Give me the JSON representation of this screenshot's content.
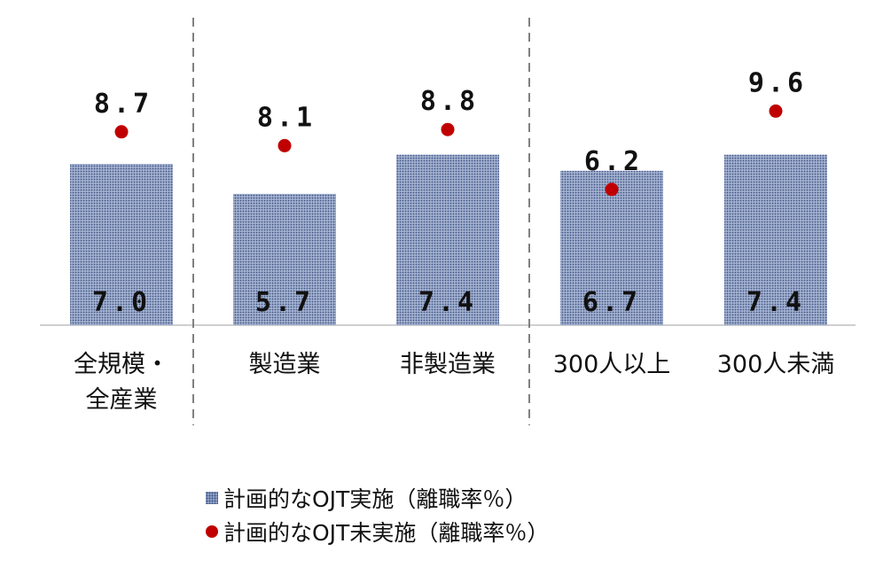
{
  "chart_data": {
    "type": "bar",
    "categories": [
      "全規模・全産業",
      "製造業",
      "非製造業",
      "300人以上",
      "300人未満"
    ],
    "category_display": [
      [
        "全規模・",
        "全産業"
      ],
      [
        "製造業"
      ],
      [
        "非製造業"
      ],
      [
        "300人以上"
      ],
      [
        "300人未満"
      ]
    ],
    "series": [
      {
        "name": "計画的なOJT実施（離職率％）",
        "type": "bar",
        "values": [
          7.0,
          5.7,
          7.4,
          6.7,
          7.4
        ],
        "labels": [
          "7.0",
          "5.7",
          "7.4",
          "6.7",
          "7.4"
        ]
      },
      {
        "name": "計画的なOJT未実施（離職率％）",
        "type": "scatter",
        "values": [
          8.7,
          8.1,
          8.8,
          6.2,
          9.6
        ],
        "labels": [
          "8.7",
          "8.1",
          "8.8",
          "6.2",
          "9.6"
        ]
      }
    ],
    "ylim": [
      0,
      10
    ],
    "grid": false,
    "legend": "bottom",
    "colors": {
      "bar": "#8fa0c4",
      "bar_dots": "#3d5486",
      "dot": "#c00000",
      "divider": "#808080"
    }
  }
}
